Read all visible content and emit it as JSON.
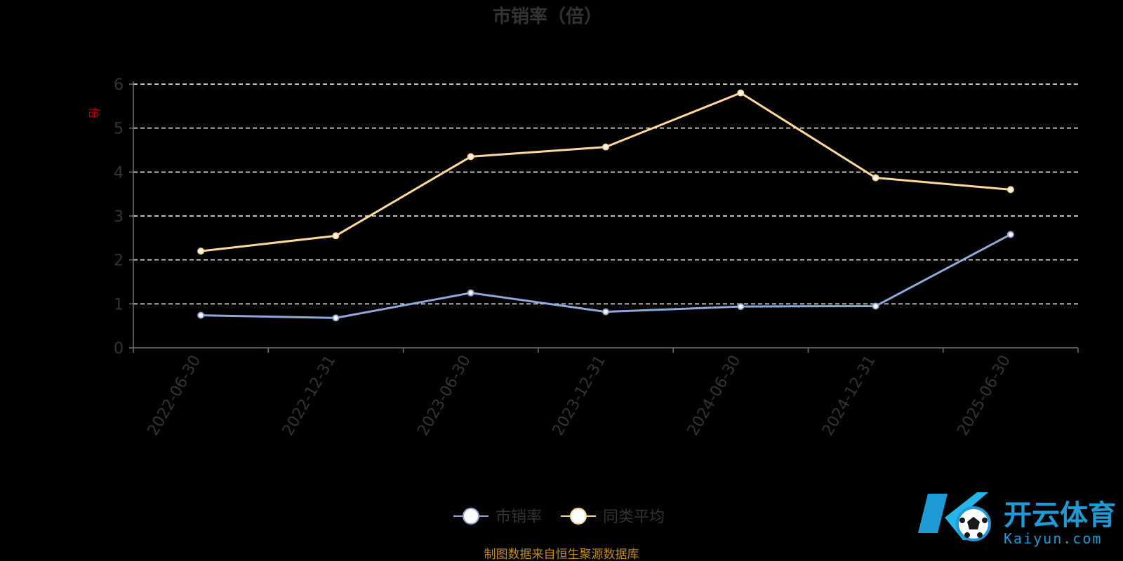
{
  "chart_data": {
    "type": "line",
    "title": "市销率（倍）",
    "y_unit_label": "倍",
    "categories": [
      "2022-06-30",
      "2022-12-31",
      "2023-06-30",
      "2023-12-31",
      "2024-06-30",
      "2024-12-31",
      "2025-06-30"
    ],
    "ylim": [
      0,
      6
    ],
    "yticks": [
      "0",
      "1",
      "2",
      "3",
      "4",
      "5",
      "6"
    ],
    "grid": true,
    "legend_position": "bottom-center",
    "series": [
      {
        "name": "市销率",
        "color": "#8fa8d8",
        "values": [
          0.74,
          0.68,
          1.25,
          0.82,
          0.94,
          0.95,
          2.58
        ]
      },
      {
        "name": "同类平均",
        "color": "#ffd89a",
        "values": [
          2.2,
          2.55,
          4.35,
          4.57,
          5.8,
          3.87,
          3.6
        ]
      }
    ]
  },
  "source_note": "制图数据来自恒生聚源数据库",
  "watermark": {
    "name_cn": "开云体育",
    "name_en": "Kaiyun.com"
  },
  "colors": {
    "grid": "#ffffff",
    "axis": "#6e7079",
    "unit": "#c00000",
    "source": "#c08a1e",
    "logo": "#1e9bd7"
  }
}
